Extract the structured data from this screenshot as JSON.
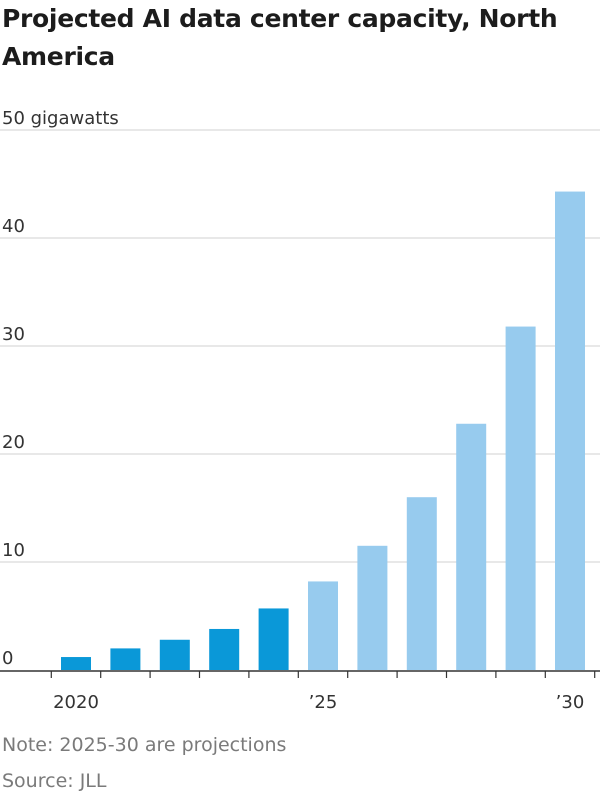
{
  "chart_data": {
    "type": "bar",
    "title": "Projected AI data center capacity, North America",
    "ylabel": "gigawatts",
    "ylim": [
      0,
      50
    ],
    "y_ticks": [
      "0",
      "10",
      "20",
      "30",
      "40",
      "50 gigawatts"
    ],
    "x_tick_labels": [
      "2020",
      "’25",
      "’30"
    ],
    "categories": [
      "2020",
      "2021",
      "2022",
      "2023",
      "2024",
      "2025",
      "2026",
      "2027",
      "2028",
      "2029",
      "2030"
    ],
    "values": [
      1.2,
      2.0,
      2.8,
      3.8,
      5.7,
      8.2,
      11.5,
      16.0,
      22.8,
      31.8,
      44.3
    ],
    "projected_from_index": 5,
    "grid": true,
    "colors": {
      "actual": "#0a98d8",
      "projected": "#97cbee",
      "grid": "#d9d9d9",
      "axis": "#333333"
    }
  },
  "notes": {
    "note": "Note: 2025-30 are projections",
    "source": "Source: JLL"
  }
}
